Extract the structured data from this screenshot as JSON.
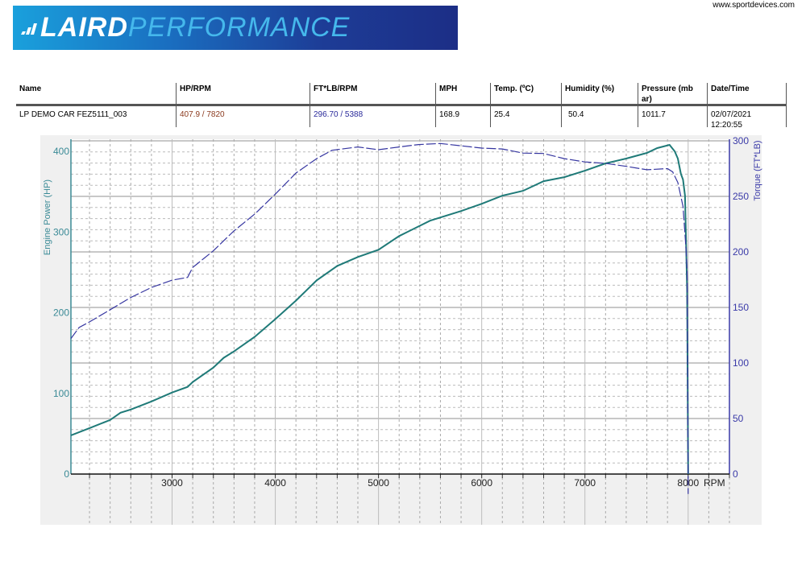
{
  "header": {
    "logo_text_1": "LAIRD",
    "logo_text_2": "PERFORMANCE",
    "website": "www.sportdevices.com"
  },
  "table": {
    "columns": [
      "Name",
      "HP/RPM",
      "FT*LB/RPM",
      "MPH",
      "Temp. (ºC)",
      "Humidity (%)",
      "Pressure (mb ar)",
      "Date/Time"
    ],
    "row": [
      "LP DEMO CAR FEZ5111_003",
      "407.9 / 7820",
      "296.70 / 5388",
      "168.9",
      "25.4",
      "50.4",
      "1011.7",
      "02/07/2021 12:20:55"
    ],
    "colors": {
      "hp": "#8b3a1e",
      "torque": "#2a2a9a"
    }
  },
  "chart_data": {
    "type": "line",
    "xlabel": "RPM",
    "ylabel_left": "Engine Power (HP)",
    "ylabel_right": "Torque (FT*LB)",
    "xlim": [
      2020,
      8400
    ],
    "ylim_left": [
      0,
      415
    ],
    "ylim_right": [
      0,
      300
    ],
    "x_ticks": [
      3000,
      4000,
      5000,
      6000,
      7000,
      8000
    ],
    "y_left_ticks": [
      0,
      100,
      200,
      300,
      400
    ],
    "y_right_ticks": [
      0,
      50,
      100,
      150,
      200,
      250,
      300
    ],
    "grid": true,
    "colors": {
      "power": "#1f7a78",
      "torque": "#3535a0",
      "left_axis": "#3a8a96",
      "right_axis": "#3a3aa8"
    },
    "series": [
      {
        "name": "Engine Power (HP)",
        "axis": "left",
        "style": "solid",
        "points": [
          [
            2020,
            48
          ],
          [
            2200,
            57
          ],
          [
            2400,
            67
          ],
          [
            2500,
            76
          ],
          [
            2600,
            80
          ],
          [
            2800,
            90
          ],
          [
            3000,
            101
          ],
          [
            3150,
            108
          ],
          [
            3200,
            114
          ],
          [
            3400,
            132
          ],
          [
            3500,
            144
          ],
          [
            3600,
            152
          ],
          [
            3800,
            170
          ],
          [
            4000,
            192
          ],
          [
            4200,
            215
          ],
          [
            4400,
            240
          ],
          [
            4600,
            258
          ],
          [
            4800,
            269
          ],
          [
            5000,
            278
          ],
          [
            5200,
            295
          ],
          [
            5500,
            314
          ],
          [
            5800,
            326
          ],
          [
            6000,
            335
          ],
          [
            6200,
            345
          ],
          [
            6400,
            351
          ],
          [
            6600,
            363
          ],
          [
            6800,
            368
          ],
          [
            7000,
            376
          ],
          [
            7200,
            385
          ],
          [
            7400,
            391
          ],
          [
            7600,
            398
          ],
          [
            7700,
            404
          ],
          [
            7820,
            408
          ],
          [
            7870,
            400
          ],
          [
            7900,
            391
          ],
          [
            7930,
            372
          ],
          [
            7950,
            365
          ],
          [
            7970,
            345
          ],
          [
            7990,
            228
          ],
          [
            8000,
            0
          ]
        ]
      },
      {
        "name": "Torque (FT*LB)",
        "axis": "right",
        "style": "dashed",
        "points": [
          [
            2020,
            122
          ],
          [
            2100,
            132
          ],
          [
            2200,
            137
          ],
          [
            2400,
            148
          ],
          [
            2600,
            159
          ],
          [
            2800,
            168
          ],
          [
            3000,
            174.6
          ],
          [
            3150,
            177
          ],
          [
            3200,
            186
          ],
          [
            3400,
            201
          ],
          [
            3600,
            219
          ],
          [
            3800,
            234
          ],
          [
            4000,
            252
          ],
          [
            4200,
            271
          ],
          [
            4400,
            284
          ],
          [
            4550,
            291.5
          ],
          [
            4800,
            294.5
          ],
          [
            5000,
            292
          ],
          [
            5200,
            294.5
          ],
          [
            5388,
            296.7
          ],
          [
            5600,
            297.6
          ],
          [
            6000,
            293.5
          ],
          [
            6200,
            292.7
          ],
          [
            6400,
            289
          ],
          [
            6600,
            288.6
          ],
          [
            6800,
            284
          ],
          [
            7000,
            281
          ],
          [
            7200,
            279.7
          ],
          [
            7400,
            277
          ],
          [
            7600,
            274
          ],
          [
            7800,
            275
          ],
          [
            7850,
            272
          ],
          [
            7900,
            262.5
          ],
          [
            7950,
            241
          ],
          [
            7980,
            202
          ],
          [
            7990,
            183
          ],
          [
            7995,
            100
          ],
          [
            8000,
            -18
          ]
        ]
      }
    ]
  }
}
